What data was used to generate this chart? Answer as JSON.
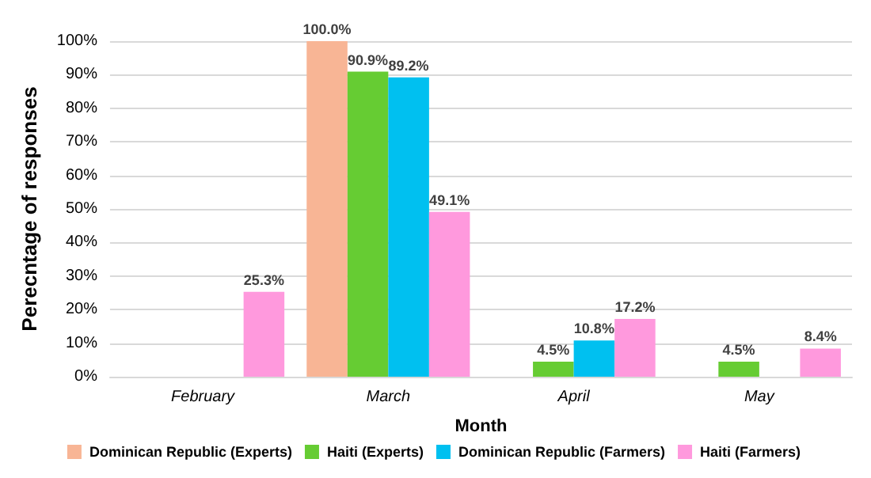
{
  "chart_data": {
    "type": "bar",
    "xlabel": "Month",
    "ylabel": "Perecntage of responses",
    "categories": [
      "February",
      "March",
      "April",
      "May"
    ],
    "series": [
      {
        "name": "Dominican Republic (Experts)",
        "color": "#f8b595",
        "values": [
          null,
          100.0,
          null,
          null
        ],
        "value_labels": [
          null,
          "100.0%",
          null,
          null
        ]
      },
      {
        "name": "Haiti (Experts)",
        "color": "#66cc33",
        "values": [
          null,
          90.9,
          4.5,
          4.5
        ],
        "value_labels": [
          null,
          "90.9%",
          "4.5%",
          "4.5%"
        ]
      },
      {
        "name": "Dominican Republic (Farmers)",
        "color": "#00c0f0",
        "values": [
          null,
          89.2,
          10.8,
          null
        ],
        "value_labels": [
          null,
          "89.2%",
          "10.8%",
          null
        ]
      },
      {
        "name": "Haiti (Farmers)",
        "color": "#ff99dd",
        "values": [
          25.3,
          49.1,
          17.2,
          8.4
        ],
        "value_labels": [
          "25.3%",
          "49.1%",
          "17.2%",
          "8.4%"
        ]
      }
    ],
    "ylim": [
      0,
      100
    ],
    "yticks": [
      {
        "value": 0,
        "label": "0%"
      },
      {
        "value": 10,
        "label": "10%"
      },
      {
        "value": 20,
        "label": "20%"
      },
      {
        "value": 30,
        "label": "30%"
      },
      {
        "value": 40,
        "label": "40%"
      },
      {
        "value": 50,
        "label": "50%"
      },
      {
        "value": 60,
        "label": "60%"
      },
      {
        "value": 70,
        "label": "70%"
      },
      {
        "value": 80,
        "label": "80%"
      },
      {
        "value": 90,
        "label": "90%"
      },
      {
        "value": 100,
        "label": "100%"
      }
    ],
    "grid": "y",
    "legend": "bottom"
  }
}
